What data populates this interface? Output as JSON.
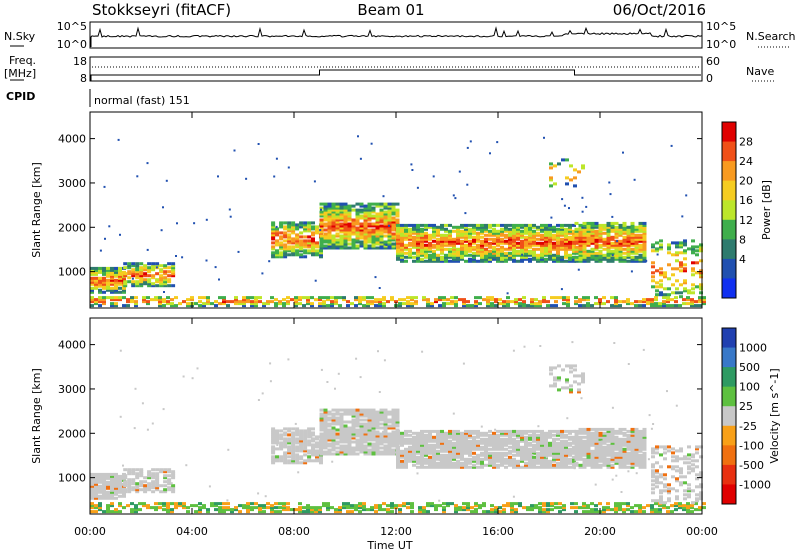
{
  "header": {
    "station": "Stokkseyri (fitACF)",
    "beam": "Beam 01",
    "date": "06/Oct/2016"
  },
  "panels": {
    "nsky": {
      "label": "N.Sky",
      "ticks_left": [
        "10^5",
        "10^0"
      ],
      "ticks_right": [
        "10^5",
        "10^0"
      ],
      "right_label": "N.Search"
    },
    "freq": {
      "label_top": "Freq.",
      "label_unit": "[MHz]",
      "ticks_left": [
        "18",
        "8"
      ],
      "ticks_right": [
        "60",
        "0"
      ],
      "right_label": "Nave",
      "switch_times_h": [
        9.0,
        19.0
      ],
      "nave_low": 4,
      "nave_high": 8
    },
    "cpid": {
      "label": "CPID",
      "value": "normal (fast) 151"
    }
  },
  "chart_data": [
    {
      "type": "heatmap",
      "name": "power",
      "ylabel": "Slant Range [km]",
      "yticks": [
        1000,
        2000,
        3000,
        4000
      ],
      "ylim": [
        180,
        4600
      ],
      "xlim_h": [
        0,
        24
      ],
      "colorbar": {
        "label": "Power [dB]",
        "ticks": [
          "28",
          "24",
          "20",
          "16",
          "12",
          "8",
          "4"
        ],
        "colors": [
          "#e00000",
          "#f05018",
          "#f89a20",
          "#f5cc20",
          "#bce62a",
          "#3fae4c",
          "#2e7b6e",
          "#2050b0",
          "#1030f0"
        ]
      }
    },
    {
      "type": "heatmap",
      "name": "velocity",
      "ylabel": "Slant Range [km]",
      "yticks": [
        1000,
        2000,
        3000,
        4000
      ],
      "ylim": [
        180,
        4600
      ],
      "xlim_h": [
        0,
        24
      ],
      "xticks": [
        "00:00",
        "04:00",
        "08:00",
        "12:00",
        "16:00",
        "20:00",
        "00:00"
      ],
      "xlabel": "Time UT",
      "colorbar": {
        "label": "Velocity [m s^-1]",
        "ticks": [
          "1000",
          "500",
          "100",
          "25",
          "-25",
          "-100",
          "-500",
          "-1000"
        ],
        "colors": [
          "#2040b0",
          "#3878c8",
          "#2e9a62",
          "#5ec040",
          "#c8c8c8",
          "#f8a018",
          "#f07010",
          "#e83010",
          "#e00000"
        ]
      }
    }
  ]
}
